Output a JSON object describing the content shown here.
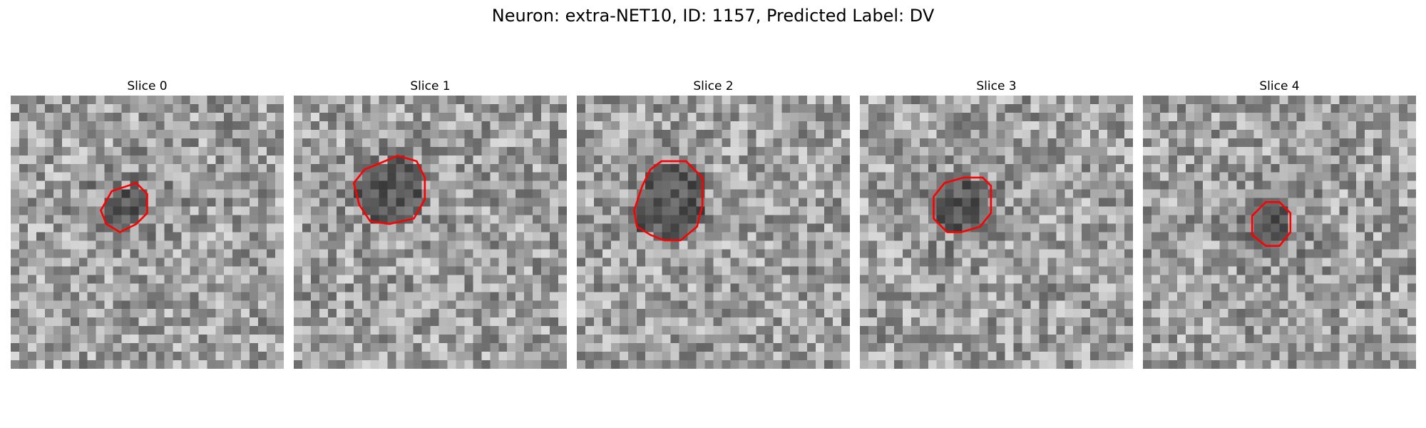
{
  "figure": {
    "title": "Neuron: extra-NET10, ID: 1157, Predicted Label: DV",
    "outline_color": "#ff0000"
  },
  "panels": [
    {
      "title": "Slice 0",
      "seed": 11,
      "ring": [
        [
          37,
          35
        ],
        [
          46,
          32
        ],
        [
          50,
          36
        ],
        [
          50,
          43
        ],
        [
          46,
          47
        ],
        [
          40,
          50
        ],
        [
          35,
          47
        ],
        [
          33,
          42
        ]
      ]
    },
    {
      "title": "Slice 1",
      "seed": 23,
      "ring": [
        [
          31,
          25
        ],
        [
          38,
          22
        ],
        [
          45,
          24
        ],
        [
          48,
          30
        ],
        [
          48,
          38
        ],
        [
          44,
          45
        ],
        [
          35,
          47
        ],
        [
          28,
          46
        ],
        [
          24,
          40
        ],
        [
          22,
          32
        ],
        [
          26,
          27
        ]
      ]
    },
    {
      "title": "Slice 2",
      "seed": 37,
      "ring": [
        [
          31,
          24
        ],
        [
          40,
          24
        ],
        [
          46,
          30
        ],
        [
          46,
          40
        ],
        [
          44,
          48
        ],
        [
          38,
          53
        ],
        [
          32,
          53
        ],
        [
          27,
          51
        ],
        [
          22,
          48
        ],
        [
          21,
          42
        ],
        [
          24,
          33
        ],
        [
          27,
          27
        ]
      ]
    },
    {
      "title": "Slice 3",
      "seed": 41,
      "ring": [
        [
          38,
          30
        ],
        [
          45,
          30
        ],
        [
          48,
          33
        ],
        [
          48,
          43
        ],
        [
          44,
          48
        ],
        [
          37,
          50
        ],
        [
          32,
          50
        ],
        [
          27,
          45
        ],
        [
          27,
          37
        ],
        [
          31,
          32
        ]
      ]
    },
    {
      "title": "Slice 4",
      "seed": 53,
      "ring": [
        [
          45,
          39
        ],
        [
          50,
          39
        ],
        [
          54,
          43
        ],
        [
          54,
          50
        ],
        [
          50,
          55
        ],
        [
          45,
          55
        ],
        [
          40,
          51
        ],
        [
          40,
          44
        ]
      ]
    }
  ]
}
